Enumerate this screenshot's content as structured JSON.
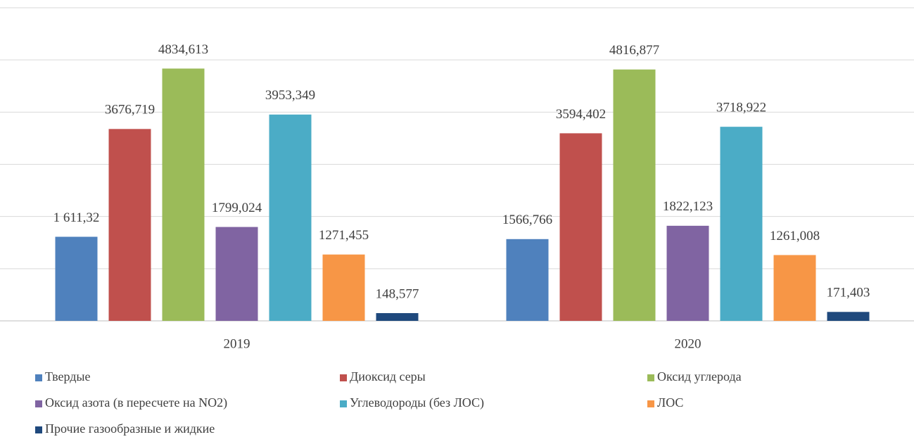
{
  "chart_data": {
    "type": "bar",
    "categories": [
      "2019",
      "2020"
    ],
    "series": [
      {
        "name": "Твердые",
        "color": "#4f81bd",
        "values": [
          1611.32,
          1566.766
        ],
        "value_labels": [
          "1 611,32",
          "1566,766"
        ]
      },
      {
        "name": "Диоксид серы",
        "color": "#c0504d",
        "values": [
          3676.719,
          3594.402
        ],
        "value_labels": [
          "3676,719",
          "3594,402"
        ]
      },
      {
        "name": "Оксид углерода",
        "color": "#9bbb59",
        "values": [
          4834.613,
          4816.877
        ],
        "value_labels": [
          "4834,613",
          "4816,877"
        ]
      },
      {
        "name": "Оксид азота (в пересчете на NO2)",
        "color": "#8064a2",
        "values": [
          1799.024,
          1822.123
        ],
        "value_labels": [
          "1799,024",
          "1822,123"
        ]
      },
      {
        "name": "Углеводороды (без ЛОС)",
        "color": "#4bacc6",
        "values": [
          3953.349,
          3718.922
        ],
        "value_labels": [
          "3953,349",
          "3718,922"
        ]
      },
      {
        "name": "ЛОС",
        "color": "#f79646",
        "values": [
          1271.455,
          1261.008
        ],
        "value_labels": [
          "1271,455",
          "1261,008"
        ]
      },
      {
        "name": "Прочие газообразные и жидкие",
        "color": "#1f497d",
        "values": [
          148.577,
          171.403
        ],
        "value_labels": [
          "148,577",
          "171,403"
        ]
      }
    ],
    "ylim": [
      0,
      6000
    ],
    "yticks": [
      0,
      1000,
      2000,
      3000,
      4000,
      5000,
      6000
    ],
    "grid": true
  }
}
